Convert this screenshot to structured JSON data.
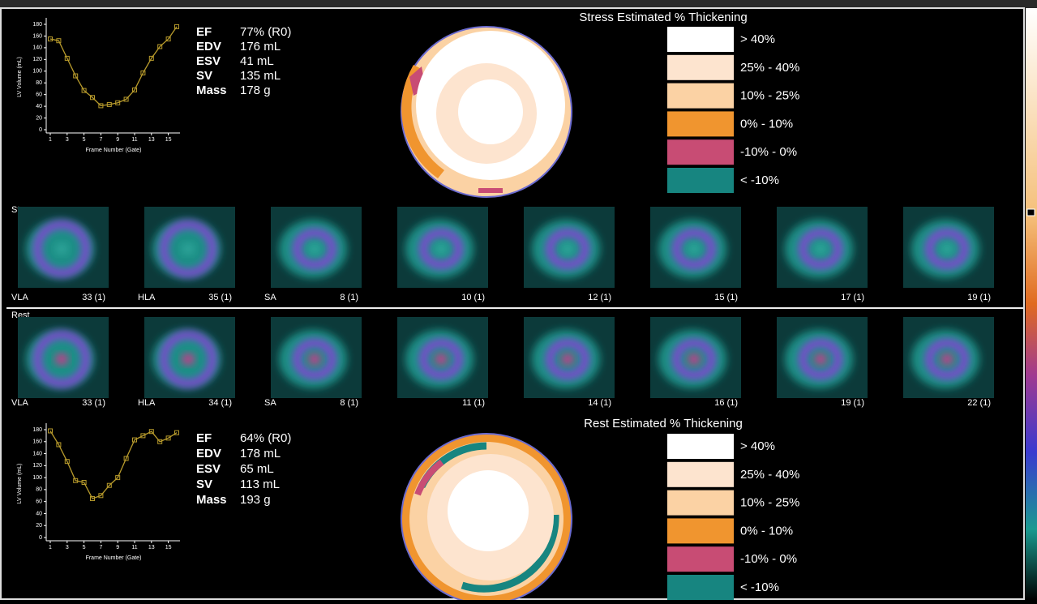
{
  "legend": [
    {
      "label": "> 40%",
      "color": "#ffffff"
    },
    {
      "label": "25% - 40%",
      "color": "#fde4cf"
    },
    {
      "label": "10% - 25%",
      "color": "#fbd2a4"
    },
    {
      "label": "0% - 10%",
      "color": "#f0952f"
    },
    {
      "label": "-10% - 0%",
      "color": "#c84c74"
    },
    {
      "label": "< -10%",
      "color": "#178580"
    }
  ],
  "stress": {
    "label": "Stress",
    "volume_chart": {
      "type": "line",
      "color": "#b89b2c",
      "xlabel": "Frame Number (Gate)",
      "ylabel": "LV Volume (mL)",
      "x": [
        1,
        2,
        3,
        4,
        5,
        6,
        7,
        8,
        9,
        10,
        11,
        12,
        13,
        14,
        15,
        16
      ],
      "values": [
        155,
        152,
        122,
        92,
        67,
        55,
        41,
        43,
        46,
        52,
        68,
        97,
        122,
        142,
        155,
        176
      ],
      "xlim": [
        1,
        16
      ],
      "ylim": [
        0,
        180
      ],
      "xticks": [
        1,
        3,
        5,
        7,
        9,
        11,
        13,
        15
      ],
      "yticks": [
        0,
        20,
        40,
        60,
        80,
        100,
        120,
        140,
        160,
        180
      ]
    },
    "metrics": [
      {
        "label": "EF",
        "value": "77% (R0)"
      },
      {
        "label": "EDV",
        "value": "176 mL"
      },
      {
        "label": "ESV",
        "value": "41 mL"
      },
      {
        "label": "SV",
        "value": "135 mL"
      },
      {
        "label": "Mass",
        "value": "178 g"
      }
    ],
    "polar_title": "Stress Estimated % Thickening",
    "slices": [
      {
        "name": "VLA",
        "frame": "33 (1)"
      },
      {
        "name": "HLA",
        "frame": "35 (1)"
      },
      {
        "name": "SA",
        "frame": "8 (1)"
      },
      {
        "frame": "10 (1)"
      },
      {
        "frame": "12 (1)"
      },
      {
        "frame": "15 (1)"
      },
      {
        "frame": "17 (1)"
      },
      {
        "frame": "19 (1)"
      }
    ]
  },
  "rest": {
    "label": "Rest",
    "volume_chart": {
      "type": "line",
      "color": "#b89b2c",
      "xlabel": "Frame Number (Gate)",
      "ylabel": "LV Volume (mL)",
      "x": [
        1,
        2,
        3,
        4,
        5,
        6,
        7,
        8,
        9,
        10,
        11,
        12,
        13,
        14,
        15,
        16
      ],
      "values": [
        178,
        155,
        127,
        95,
        92,
        65,
        70,
        87,
        100,
        132,
        163,
        170,
        177,
        160,
        166,
        175
      ],
      "xlim": [
        1,
        16
      ],
      "ylim": [
        0,
        180
      ],
      "xticks": [
        1,
        3,
        5,
        7,
        9,
        11,
        13,
        15
      ],
      "yticks": [
        0,
        20,
        40,
        60,
        80,
        100,
        120,
        140,
        160,
        180
      ]
    },
    "metrics": [
      {
        "label": "EF",
        "value": "64% (R0)"
      },
      {
        "label": "EDV",
        "value": "178 mL"
      },
      {
        "label": "ESV",
        "value": "65 mL"
      },
      {
        "label": "SV",
        "value": "113 mL"
      },
      {
        "label": "Mass",
        "value": "193 g"
      }
    ],
    "polar_title": "Rest Estimated % Thickening",
    "slices": [
      {
        "name": "VLA",
        "frame": "33 (1)"
      },
      {
        "name": "HLA",
        "frame": "34 (1)"
      },
      {
        "name": "SA",
        "frame": "8 (1)"
      },
      {
        "frame": "11 (1)"
      },
      {
        "frame": "14 (1)"
      },
      {
        "frame": "16 (1)"
      },
      {
        "frame": "19 (1)"
      },
      {
        "frame": "22 (1)"
      }
    ]
  }
}
